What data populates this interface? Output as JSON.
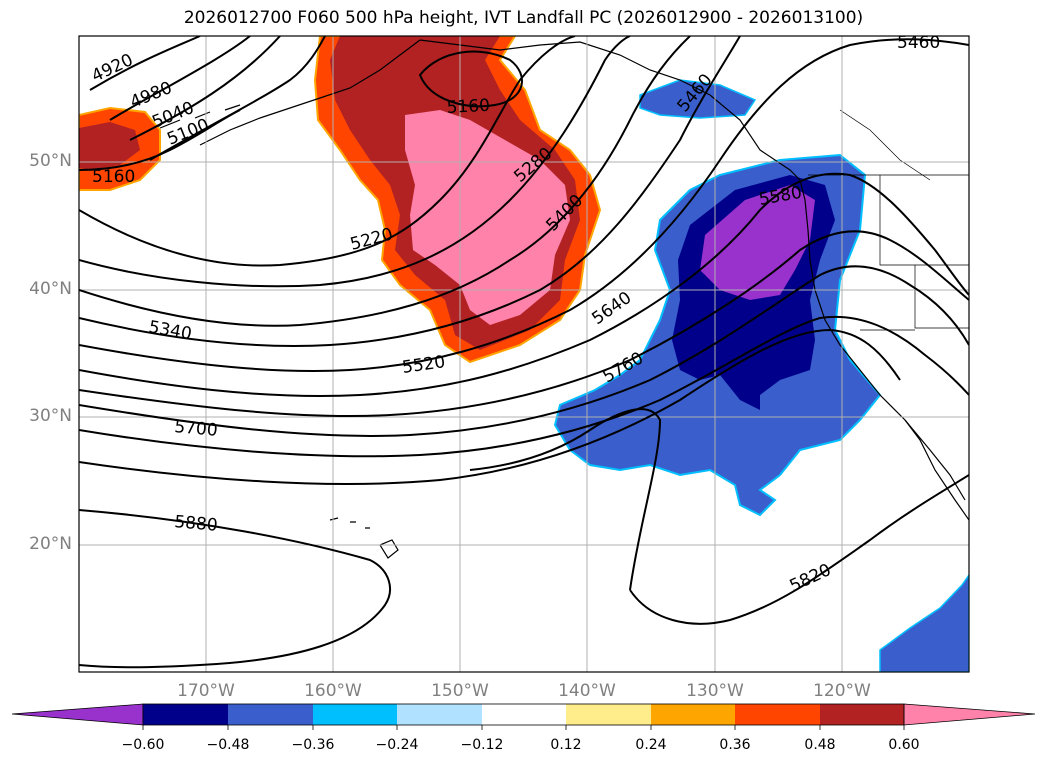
{
  "title": "2026012700 F060 500 hPa height, IVT Landfall PC (2026012900 - 2026013100)",
  "lat_ticks": [
    "50°N",
    "40°N",
    "30°N",
    "20°N"
  ],
  "lon_ticks": [
    "170°W",
    "160°W",
    "150°W",
    "140°W",
    "130°W",
    "120°W"
  ],
  "contour_labels": [
    "4920",
    "4980",
    "5040",
    "5100",
    "5160",
    "5160",
    "5220",
    "5280",
    "5340",
    "5400",
    "5460",
    "5460",
    "5520",
    "5580",
    "5640",
    "5700",
    "5760",
    "5820",
    "5880"
  ],
  "colorbar": {
    "ticks": [
      "−0.60",
      "−0.48",
      "−0.36",
      "−0.24",
      "−0.12",
      "0.12",
      "0.24",
      "0.36",
      "0.48",
      "0.60"
    ],
    "colors": [
      "#9932cc",
      "#00008b",
      "#3a5fcd",
      "#00bfff",
      "#b0e2ff",
      "#ffffff",
      "#ffec8b",
      "#ffa500",
      "#ff4500",
      "#b22222",
      "#ff82ab"
    ]
  }
}
